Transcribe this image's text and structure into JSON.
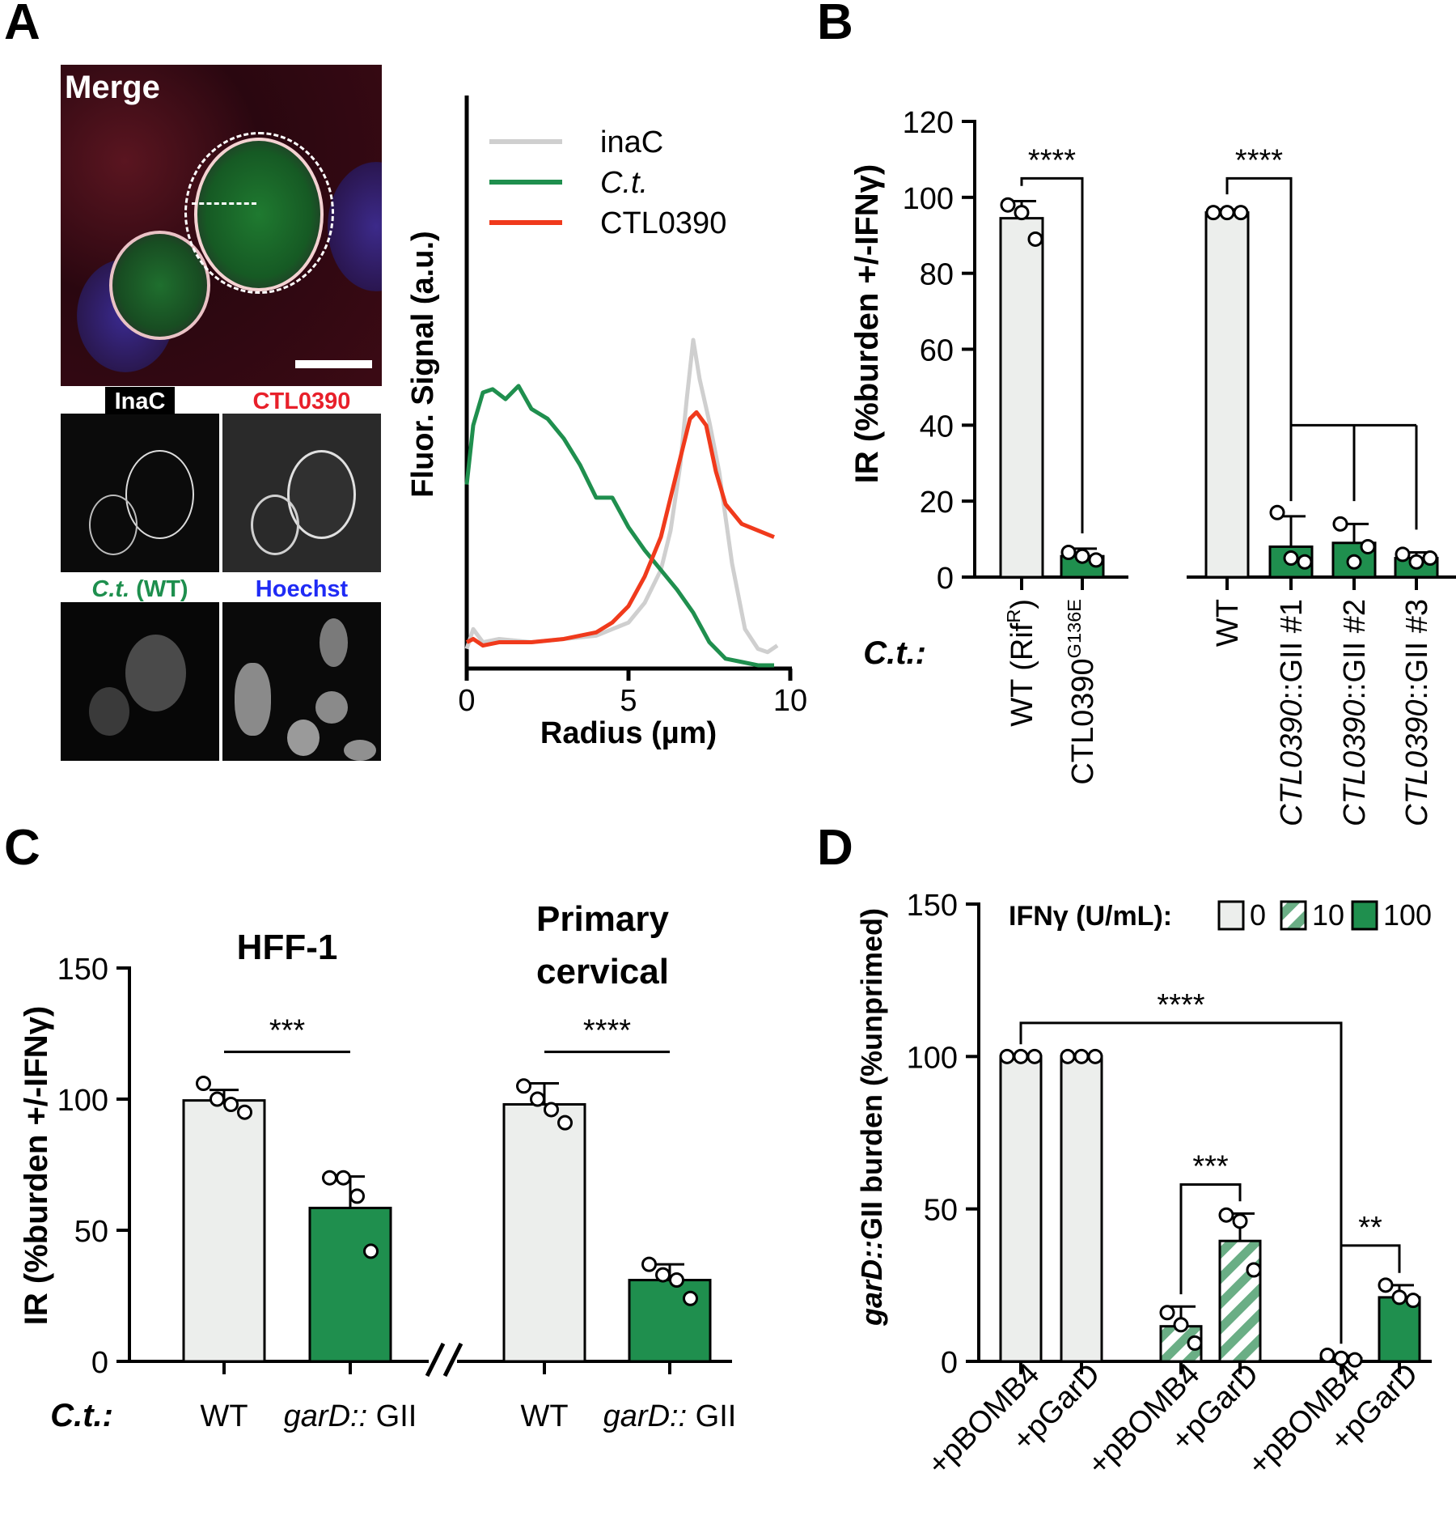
{
  "panel_letters": [
    "A",
    "B",
    "C",
    "D"
  ],
  "microscopy": {
    "merge_label": "Merge",
    "channels": [
      {
        "label": "InaC",
        "color": "#ffffff",
        "bg": "#000000"
      },
      {
        "label": "CTL0390",
        "color": "#e8202a",
        "bg": "#ffffff"
      },
      {
        "label_italic": "C.t.",
        "label_rest": " (WT)",
        "color": "#1e8f4e",
        "bg": "#ffffff"
      },
      {
        "label": "Hoechst",
        "color": "#1f2bf5",
        "bg": "#ffffff"
      }
    ]
  },
  "colors": {
    "light_bar": "#eceeec",
    "green_bar": "#1f8f4e",
    "inaC_line": "#cfcfcf",
    "ct_line": "#1f8f4e",
    "ctl_line": "#f03a1c"
  },
  "chart_data": [
    {
      "panel": "A",
      "type": "line",
      "xlabel": "Radius (µm)",
      "ylabel": "Fluor. Signal (a.u.)",
      "xlim": [
        0,
        10
      ],
      "xticks": [
        0,
        5,
        10
      ],
      "legend_placement": "top-right",
      "series": [
        {
          "name": "inaC",
          "color": "#cfcfcf",
          "x": [
            0,
            0.2,
            0.5,
            1,
            2,
            3,
            4,
            5,
            5.5,
            6,
            6.3,
            6.6,
            6.8,
            7.0,
            7.2,
            7.5,
            7.8,
            8.2,
            8.6,
            9.0,
            9.3,
            9.6
          ],
          "y": [
            0.06,
            0.12,
            0.08,
            0.09,
            0.08,
            0.09,
            0.1,
            0.14,
            0.2,
            0.3,
            0.42,
            0.62,
            0.82,
            1.0,
            0.88,
            0.75,
            0.6,
            0.32,
            0.12,
            0.06,
            0.05,
            0.07
          ]
        },
        {
          "name": "C.t.",
          "color": "#1f8f4e",
          "italic": true,
          "x": [
            0,
            0.2,
            0.5,
            0.8,
            1.2,
            1.6,
            2.0,
            2.5,
            3.0,
            3.5,
            4.0,
            4.5,
            5.0,
            5.5,
            6.0,
            6.5,
            7.0,
            7.5,
            8.0,
            8.5,
            9.0,
            9.5
          ],
          "y": [
            0.56,
            0.74,
            0.84,
            0.85,
            0.82,
            0.86,
            0.79,
            0.76,
            0.7,
            0.62,
            0.52,
            0.52,
            0.43,
            0.36,
            0.3,
            0.24,
            0.17,
            0.08,
            0.03,
            0.02,
            0.01,
            0.01
          ]
        },
        {
          "name": "CTL0390",
          "color": "#f03a1c",
          "x": [
            0,
            0.2,
            0.5,
            1,
            2,
            3,
            4,
            4.5,
            5.0,
            5.5,
            6.0,
            6.3,
            6.6,
            6.9,
            7.1,
            7.4,
            7.7,
            8.0,
            8.5,
            9.0,
            9.5
          ],
          "y": [
            0.08,
            0.09,
            0.07,
            0.08,
            0.08,
            0.09,
            0.11,
            0.14,
            0.19,
            0.28,
            0.4,
            0.52,
            0.64,
            0.76,
            0.78,
            0.74,
            0.6,
            0.5,
            0.44,
            0.42,
            0.4
          ]
        }
      ]
    },
    {
      "panel": "B",
      "type": "bar",
      "ylabel": "IR (%burden +/-IFNγ)",
      "ylim": [
        0,
        120
      ],
      "yticks": [
        0,
        20,
        40,
        60,
        80,
        100,
        120
      ],
      "row_label": "C.t.:",
      "categories": [
        {
          "label": "WT (Rif",
          "sup": "R",
          "tail": ")",
          "italic_part": "",
          "group": 1,
          "color": "light"
        },
        {
          "label": "CTL0390",
          "sup": "G136E",
          "tail": "",
          "italic_part": "",
          "group": 1,
          "color": "green"
        },
        {
          "label": "WT",
          "sup": "",
          "tail": "",
          "italic_part": "",
          "group": 2,
          "color": "light"
        },
        {
          "italic_part": "CTL0390",
          "label": "::GII #1",
          "sup": "",
          "tail": "",
          "group": 2,
          "color": "green"
        },
        {
          "italic_part": "CTL0390",
          "label": "::GII #2",
          "sup": "",
          "tail": "",
          "group": 2,
          "color": "green"
        },
        {
          "italic_part": "CTL0390",
          "label": "::GII #3",
          "sup": "",
          "tail": "",
          "group": 2,
          "color": "green"
        }
      ],
      "values": [
        94.5,
        5.5,
        96,
        8,
        9,
        5
      ],
      "errors": [
        4.5,
        2,
        0.8,
        8,
        5,
        1.5
      ],
      "points": [
        [
          98,
          96,
          89
        ],
        [
          6.5,
          5.5,
          4.5
        ],
        [
          96,
          96,
          96
        ],
        [
          17,
          5,
          4
        ],
        [
          14,
          4,
          8
        ],
        [
          6,
          4,
          5
        ]
      ],
      "significance": [
        {
          "label": "****",
          "from": 0,
          "to": 1,
          "y": 105
        },
        {
          "label": "****",
          "from": 2,
          "to": 3,
          "y": 105
        },
        {
          "label": "",
          "from": 3,
          "to": 5,
          "y": 40,
          "bracket": "multi"
        }
      ]
    },
    {
      "panel": "C",
      "type": "bar",
      "ylabel": "IR (%burden +/-IFNγ)",
      "ylim": [
        0,
        150
      ],
      "yticks": [
        0,
        50,
        100,
        150
      ],
      "row_label": "C.t.:",
      "group_titles": [
        "HFF-1",
        "Primary cervical"
      ],
      "categories": [
        {
          "label": "WT",
          "italic_part": "",
          "group": 1,
          "color": "light"
        },
        {
          "italic_part": "garD::",
          "label": " GII",
          "group": 1,
          "color": "green"
        },
        {
          "label": "WT",
          "italic_part": "",
          "group": 2,
          "color": "light"
        },
        {
          "italic_part": "garD::",
          "label": " GII",
          "group": 2,
          "color": "green"
        }
      ],
      "values": [
        99.5,
        58.5,
        98,
        31
      ],
      "errors": [
        4,
        12,
        8,
        6
      ],
      "points": [
        [
          106,
          100,
          98,
          95
        ],
        [
          70,
          70,
          63,
          42
        ],
        [
          105,
          100,
          96,
          91
        ],
        [
          37,
          33,
          31,
          24
        ]
      ],
      "significance": [
        {
          "label": "***",
          "from": 0,
          "to": 1,
          "y": 118
        },
        {
          "label": "****",
          "from": 2,
          "to": 3,
          "y": 118
        }
      ]
    },
    {
      "panel": "D",
      "type": "bar",
      "ylabel_italic": "garD::",
      "ylabel": "GII burden (%unprimed)",
      "ylim": [
        0,
        150
      ],
      "yticks": [
        0,
        50,
        100,
        150
      ],
      "legend_title": "IFNγ (U/mL):",
      "legend": [
        {
          "label": "0",
          "fill": "light"
        },
        {
          "label": "10",
          "fill": "hatch"
        },
        {
          "label": "100",
          "fill": "green"
        }
      ],
      "categories": [
        "+pBOMB4",
        "+pGarD",
        "+pBOMB4",
        "+pGarD",
        "+pBOMB4",
        "+pGarD"
      ],
      "fills": [
        "light",
        "light",
        "hatch",
        "hatch",
        "green",
        "green"
      ],
      "values": [
        100,
        100,
        11.5,
        39.5,
        1,
        21
      ],
      "errors": [
        0,
        0,
        6.5,
        9,
        0.8,
        4
      ],
      "points": [
        [
          100,
          100,
          100
        ],
        [
          100,
          100,
          100
        ],
        [
          16,
          12,
          6
        ],
        [
          48,
          46,
          30
        ],
        [
          2,
          1,
          0.5
        ],
        [
          25,
          21,
          20
        ]
      ],
      "significance": [
        {
          "label": "****",
          "from": 0,
          "to": 4,
          "y": 111
        },
        {
          "label": "***",
          "from": 2,
          "to": 3,
          "y": 58
        },
        {
          "label": "**",
          "from": 4,
          "to": 5,
          "y": 38
        }
      ]
    }
  ]
}
